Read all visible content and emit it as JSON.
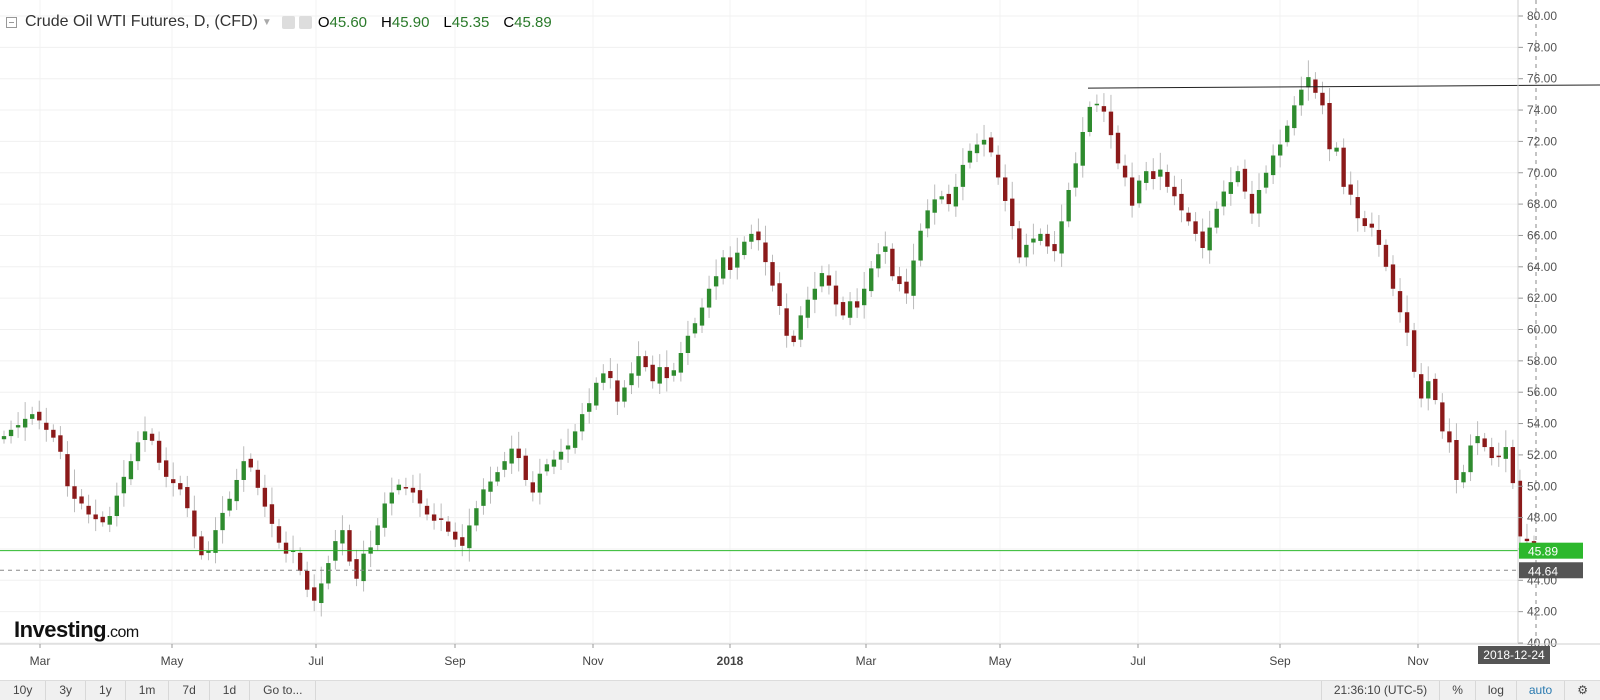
{
  "header": {
    "title": "Crude Oil WTI Futures, D, (CFD)",
    "open_label": "O",
    "open": "45.60",
    "high_label": "H",
    "high": "45.90",
    "low_label": "L",
    "low": "45.35",
    "close_label": "C",
    "close": "45.89"
  },
  "logo": {
    "brand": "Investing",
    "suffix": ".com"
  },
  "bottom_bar": {
    "ranges": [
      "10y",
      "3y",
      "1y",
      "1m",
      "7d",
      "1d"
    ],
    "goto": "Go to...",
    "time": "21:36:10 (UTC-5)",
    "percent": "%",
    "log": "log",
    "auto": "auto"
  },
  "colors": {
    "up": "#2e8b2e",
    "down": "#8b1a1a",
    "last_price": "#2db82d",
    "crosshair": "#555555"
  },
  "chart_data": {
    "type": "candlestick",
    "title": "Crude Oil WTI Futures, D, (CFD)",
    "y_ticks": [
      "40.00",
      "42.00",
      "44.00",
      "46.00",
      "48.00",
      "50.00",
      "52.00",
      "54.00",
      "56.00",
      "58.00",
      "60.00",
      "62.00",
      "64.00",
      "66.00",
      "68.00",
      "70.00",
      "72.00",
      "74.00",
      "76.00",
      "78.00",
      "80.00"
    ],
    "ylim": [
      40,
      80
    ],
    "x_labels": [
      "Mar",
      "May",
      "Jul",
      "Sep",
      "Nov",
      "2018",
      "Mar",
      "May",
      "Jul",
      "Sep",
      "Nov"
    ],
    "last_price": "45.89",
    "crosshair_price": "44.64",
    "crosshair_date": "2018-12-24",
    "resistance_line": [
      [
        "2018-06-01",
        75.4
      ],
      [
        "2018-12-31",
        75.6
      ]
    ],
    "closes": [
      53.2,
      53.6,
      53.9,
      54.3,
      54.6,
      54.2,
      53.6,
      53.1,
      52.2,
      50.0,
      49.2,
      48.9,
      48.2,
      47.9,
      47.7,
      48.1,
      49.4,
      50.6,
      51.6,
      52.8,
      53.5,
      52.9,
      51.5,
      50.6,
      50.2,
      49.8,
      48.6,
      46.8,
      45.6,
      45.9,
      47.2,
      48.3,
      49.2,
      50.4,
      51.6,
      51.2,
      49.9,
      48.7,
      47.6,
      46.4,
      45.7,
      45.9,
      44.6,
      43.4,
      42.7,
      43.8,
      45.1,
      46.5,
      47.2,
      45.2,
      44.1,
      45.7,
      46.1,
      47.5,
      48.9,
      49.6,
      50.1,
      49.9,
      49.6,
      48.9,
      48.2,
      47.8,
      47.9,
      47.1,
      46.6,
      46.2,
      47.5,
      48.6,
      49.8,
      50.3,
      50.9,
      51.6,
      52.4,
      51.8,
      50.4,
      49.6,
      50.8,
      51.4,
      51.7,
      52.2,
      52.6,
      53.5,
      54.6,
      55.3,
      56.6,
      57.2,
      56.9,
      55.4,
      56.3,
      57.2,
      58.3,
      57.6,
      56.7,
      57.6,
      56.9,
      57.4,
      58.5,
      59.6,
      60.4,
      61.4,
      62.6,
      63.4,
      64.6,
      63.8,
      64.9,
      65.6,
      66.1,
      65.7,
      64.3,
      62.8,
      61.5,
      59.6,
      59.2,
      60.9,
      61.9,
      62.6,
      63.6,
      62.8,
      61.6,
      60.9,
      61.8,
      61.4,
      62.6,
      63.9,
      64.8,
      65.3,
      63.4,
      62.9,
      62.3,
      64.4,
      66.3,
      67.6,
      68.3,
      68.5,
      68.0,
      69.1,
      70.5,
      71.4,
      71.8,
      72.1,
      71.3,
      69.7,
      68.2,
      66.6,
      64.6,
      65.4,
      65.8,
      66.1,
      65.3,
      65.0,
      66.9,
      68.9,
      70.6,
      72.6,
      74.2,
      74.4,
      73.9,
      72.4,
      70.6,
      69.7,
      67.9,
      69.5,
      70.1,
      69.6,
      70.2,
      69.1,
      68.5,
      67.6,
      66.9,
      66.1,
      65.2,
      66.5,
      67.7,
      68.8,
      69.4,
      70.1,
      68.8,
      67.4,
      68.9,
      70.0,
      71.1,
      71.8,
      73.0,
      74.3,
      75.3,
      76.1,
      75.1,
      74.3,
      71.5,
      71.6,
      69.1,
      68.6,
      67.1,
      66.6,
      66.5,
      65.4,
      64.0,
      62.6,
      61.1,
      59.8,
      57.3,
      55.6,
      56.7,
      55.5,
      53.5,
      52.8,
      50.4,
      50.9,
      52.6,
      53.2,
      52.5,
      51.8,
      51.9,
      52.5,
      50.2,
      46.8,
      46.5,
      45.9
    ]
  }
}
